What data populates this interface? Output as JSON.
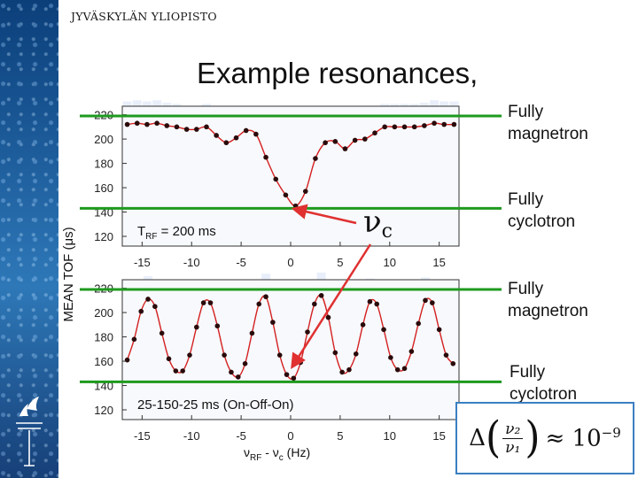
{
  "header": {
    "institution": "JYVÄSKYLÄN YLIOPISTO",
    "title": "Example resonances,"
  },
  "chart_data": [
    {
      "type": "scatter",
      "annotation": "T_RF = 200 ms",
      "ylabel": "MEAN TOF (μs)",
      "xlim": [
        -17,
        17
      ],
      "ylim": [
        112,
        227
      ],
      "xticks": [
        -15,
        -10,
        -5,
        0,
        5,
        10,
        15
      ],
      "yticks": [
        120,
        140,
        160,
        180,
        200,
        220
      ],
      "reference_lines": [
        {
          "y": 219,
          "label": "Fully magnetron"
        },
        {
          "y": 143,
          "label": "Fully cyclotron"
        }
      ],
      "x": [
        -16.5,
        -15.5,
        -14.5,
        -13.5,
        -12.5,
        -11.5,
        -10.5,
        -9.5,
        -8.5,
        -7.5,
        -6.5,
        -5.5,
        -4.5,
        -3.5,
        -2.5,
        -1.5,
        -0.5,
        0.5,
        1.5,
        2.5,
        3.5,
        4.5,
        5.5,
        6.5,
        7.5,
        8.5,
        9.5,
        10.5,
        11.5,
        12.5,
        13.5,
        14.5,
        15.5,
        16.5
      ],
      "y": [
        212,
        213,
        212,
        213,
        211,
        210,
        208,
        208,
        210,
        203,
        197,
        201,
        207,
        204,
        185,
        167,
        154,
        145,
        157,
        184,
        197,
        198,
        192,
        199,
        200,
        205,
        210,
        210,
        210,
        210,
        211,
        213,
        212,
        212
      ]
    },
    {
      "type": "scatter",
      "annotation": "25-150-25 ms (On-Off-On)",
      "xlabel": "ν_RF - ν_c (Hz)",
      "xlim": [
        -17,
        17
      ],
      "ylim": [
        112,
        227
      ],
      "xticks": [
        -15,
        -10,
        -5,
        0,
        5,
        10,
        15
      ],
      "yticks": [
        120,
        140,
        160,
        180,
        200,
        220
      ],
      "reference_lines": [
        {
          "y": 219,
          "label": "Fully magnetron"
        },
        {
          "y": 143,
          "label": "Fully cyclotron"
        }
      ],
      "x": [
        -16.5,
        -15.8,
        -15.1,
        -14.4,
        -13.7,
        -13.0,
        -12.3,
        -11.6,
        -10.9,
        -10.2,
        -9.5,
        -8.8,
        -8.1,
        -7.4,
        -6.7,
        -6.0,
        -5.3,
        -4.6,
        -3.9,
        -3.2,
        -2.5,
        -1.8,
        -1.1,
        -0.4,
        0.3,
        1.0,
        1.7,
        2.4,
        3.1,
        3.8,
        4.5,
        5.2,
        5.9,
        6.6,
        7.3,
        8.0,
        8.7,
        9.4,
        10.1,
        10.8,
        11.5,
        12.2,
        12.9,
        13.6,
        14.3,
        15.0,
        15.7,
        16.4
      ],
      "y": [
        161,
        178,
        201,
        211,
        205,
        183,
        162,
        152,
        152,
        165,
        188,
        208,
        208,
        189,
        165,
        151,
        147,
        158,
        183,
        207,
        213,
        192,
        165,
        149,
        146,
        159,
        184,
        207,
        214,
        196,
        167,
        151,
        153,
        166,
        190,
        209,
        207,
        186,
        163,
        153,
        154,
        168,
        191,
        210,
        208,
        186,
        165,
        158
      ]
    }
  ],
  "callouts": {
    "upper_magnetron": [
      "Fully",
      "magnetron"
    ],
    "upper_cyclotron": [
      "Fully",
      "cyclotron"
    ],
    "lower_magnetron": [
      "Fully",
      "magnetron"
    ],
    "lower_cyclotron": [
      "Fully",
      "cyclotron"
    ],
    "nu_c_symbol": "ν",
    "nu_c_subscript": "c"
  },
  "formula": {
    "delta": "Δ",
    "numerator": "ν₂",
    "denominator": "ν₁",
    "approx": "≈ 10",
    "exponent": "−9"
  },
  "colors": {
    "reference_line": "#1e9a1e",
    "fit_curve": "#d42020",
    "data_point": "#2a0a0a",
    "heat_blue": "#4a7fd8",
    "arrow": "#e03030",
    "sidebar": "#1f5f9e"
  }
}
